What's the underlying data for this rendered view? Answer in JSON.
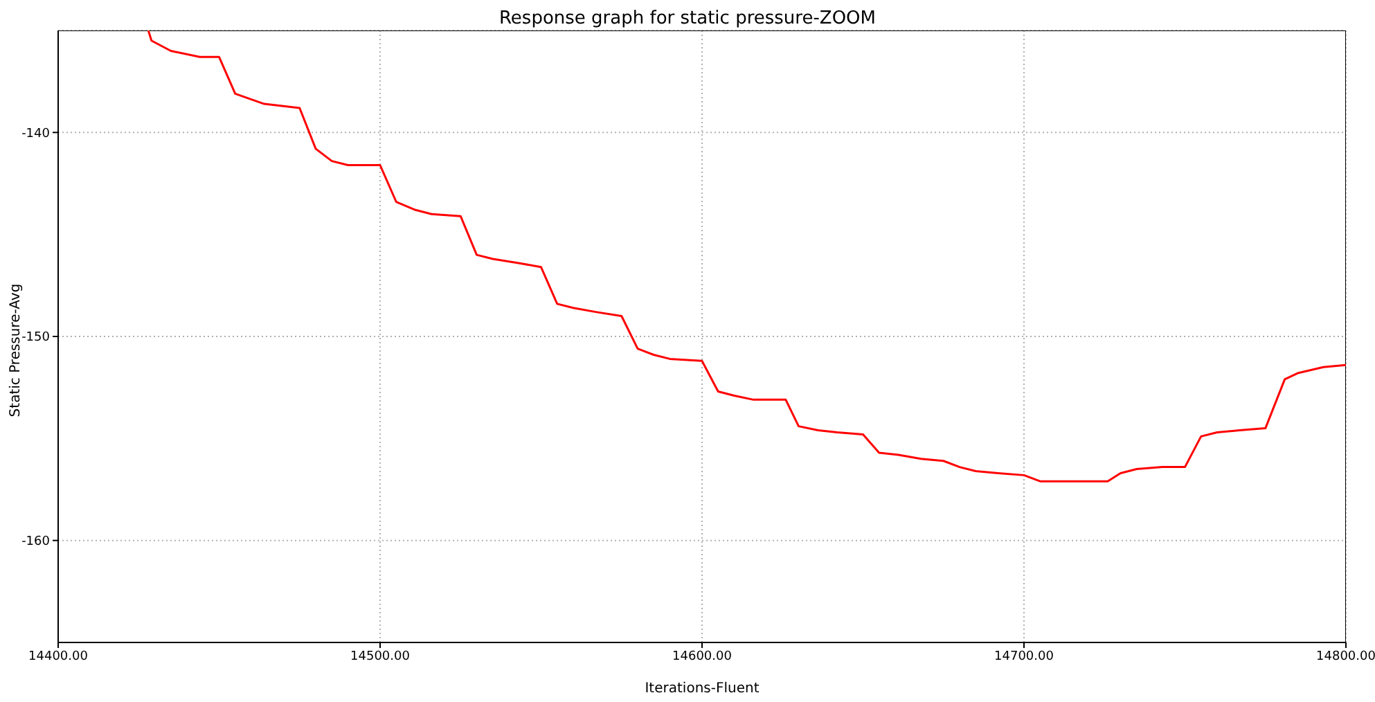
{
  "chart_data": {
    "type": "line",
    "title": "Response graph for static pressure-ZOOM",
    "xlabel": "Iterations-Fluent",
    "ylabel": "Static Pressure-Avg",
    "x": [
      14428,
      14429,
      14435,
      14444,
      14450,
      14455,
      14464,
      14475,
      14480,
      14485,
      14490,
      14500,
      14505,
      14511,
      14516,
      14525,
      14530,
      14535,
      14543,
      14550,
      14555,
      14560,
      14567,
      14575,
      14580,
      14585,
      14590,
      14600,
      14605,
      14610,
      14616,
      14626,
      14630,
      14636,
      14642,
      14650,
      14655,
      14661,
      14668,
      14675,
      14680,
      14685,
      14692,
      14700,
      14705,
      14713,
      14726,
      14730,
      14735,
      14743,
      14750,
      14755,
      14760,
      14767,
      14775,
      14781,
      14785,
      14793,
      14800
    ],
    "series": [
      {
        "color": "#ff0000",
        "values": [
          -135.0,
          -135.5,
          -136.0,
          -136.3,
          -136.3,
          -138.1,
          -138.6,
          -138.8,
          -140.8,
          -141.4,
          -141.6,
          -141.6,
          -143.4,
          -143.8,
          -144.0,
          -144.1,
          -146.0,
          -146.2,
          -146.4,
          -146.6,
          -148.4,
          -148.6,
          -148.8,
          -149.0,
          -150.6,
          -150.9,
          -151.1,
          -151.2,
          -152.7,
          -152.9,
          -153.1,
          -153.1,
          -154.4,
          -154.6,
          -154.7,
          -154.8,
          -155.7,
          -155.8,
          -156.0,
          -156.1,
          -156.4,
          -156.6,
          -156.7,
          -156.8,
          -157.1,
          -157.1,
          -157.1,
          -156.7,
          -156.5,
          -156.4,
          -156.4,
          -154.9,
          -154.7,
          -154.6,
          -154.5,
          -152.1,
          -151.8,
          -151.5,
          -151.4
        ]
      }
    ],
    "xlim": [
      14400,
      14800
    ],
    "xticks": [
      {
        "value": 14400,
        "label": "14400.00"
      },
      {
        "value": 14500,
        "label": "14500.00"
      },
      {
        "value": 14600,
        "label": "14600.00"
      },
      {
        "value": 14700,
        "label": "14700.00"
      },
      {
        "value": 14800,
        "label": "14800.00"
      }
    ],
    "ylim": [
      -165,
      -135
    ],
    "yticks": [
      -160,
      -150,
      -140
    ],
    "grid": true,
    "marker": "none",
    "line_style": "solid"
  }
}
